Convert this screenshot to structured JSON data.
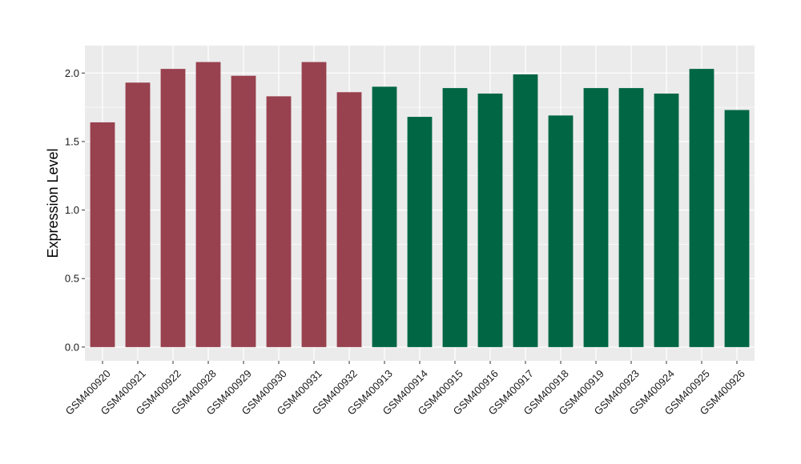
{
  "chart_data": {
    "type": "bar",
    "title": "",
    "xlabel": "",
    "ylabel": "Expression Level",
    "ylim": [
      -0.1,
      2.2
    ],
    "yticks": [
      0.0,
      0.5,
      1.0,
      1.5,
      2.0
    ],
    "ytick_labels": [
      "0.0",
      "0.5",
      "1.0",
      "1.5",
      "2.0"
    ],
    "grid": true,
    "legend": "none",
    "categories": [
      "GSM400920",
      "GSM400921",
      "GSM400922",
      "GSM400928",
      "GSM400929",
      "GSM400930",
      "GSM400931",
      "GSM400932",
      "GSM400913",
      "GSM400914",
      "GSM400915",
      "GSM400916",
      "GSM400917",
      "GSM400918",
      "GSM400919",
      "GSM400923",
      "GSM400924",
      "GSM400925",
      "GSM400926"
    ],
    "values": [
      1.64,
      1.93,
      2.03,
      2.08,
      1.98,
      1.83,
      2.08,
      1.86,
      1.9,
      1.68,
      1.89,
      1.85,
      1.99,
      1.69,
      1.89,
      1.89,
      1.85,
      2.03,
      1.73
    ],
    "groups": [
      0,
      0,
      0,
      0,
      0,
      0,
      0,
      0,
      1,
      1,
      1,
      1,
      1,
      1,
      1,
      1,
      1,
      1,
      1
    ],
    "colors": [
      "#98414F",
      "#006644"
    ],
    "panel_color": "#EBEBEB",
    "grid_color": "#FFFFFF"
  }
}
